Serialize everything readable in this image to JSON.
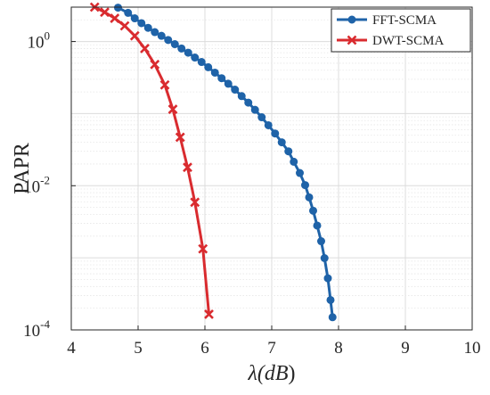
{
  "chart_data": {
    "type": "line",
    "title": "",
    "xlabel_parts": [
      "λ(",
      "dB",
      ")"
    ],
    "ylabel": "PAPR",
    "xlim": [
      4,
      10
    ],
    "ylim": [
      0.0001,
      3
    ],
    "yscale": "log",
    "grid": true,
    "legend_position": "top-right",
    "x_ticks": [
      4,
      5,
      6,
      7,
      8,
      9,
      10
    ],
    "x_tick_labels": [
      "4",
      "5",
      "6",
      "7",
      "8",
      "9",
      "10"
    ],
    "y_ticks": [
      {
        "value": 0.0001,
        "base": "10",
        "exp": "-4"
      },
      {
        "value": 0.01,
        "base": "10",
        "exp": "-2"
      },
      {
        "value": 1,
        "base": "10",
        "exp": "0"
      }
    ],
    "series": [
      {
        "name": "FFT-SCMA",
        "color": "#1f63a8",
        "marker": "circle",
        "points": [
          [
            4.7,
            2.95
          ],
          [
            4.85,
            2.5
          ],
          [
            4.95,
            2.1
          ],
          [
            5.05,
            1.8
          ],
          [
            5.15,
            1.55
          ],
          [
            5.25,
            1.35
          ],
          [
            5.35,
            1.2
          ],
          [
            5.45,
            1.05
          ],
          [
            5.55,
            0.92
          ],
          [
            5.65,
            0.8
          ],
          [
            5.75,
            0.7
          ],
          [
            5.85,
            0.6
          ],
          [
            5.95,
            0.52
          ],
          [
            6.05,
            0.44
          ],
          [
            6.15,
            0.37
          ],
          [
            6.25,
            0.31
          ],
          [
            6.35,
            0.26
          ],
          [
            6.45,
            0.215
          ],
          [
            6.55,
            0.175
          ],
          [
            6.65,
            0.142
          ],
          [
            6.75,
            0.113
          ],
          [
            6.85,
            0.089
          ],
          [
            6.95,
            0.069
          ],
          [
            7.05,
            0.053
          ],
          [
            7.15,
            0.04
          ],
          [
            7.25,
            0.03
          ],
          [
            7.33,
            0.0215
          ],
          [
            7.42,
            0.015
          ],
          [
            7.5,
            0.0102
          ],
          [
            7.56,
            0.0069
          ],
          [
            7.62,
            0.0045
          ],
          [
            7.68,
            0.0028
          ],
          [
            7.74,
            0.0017
          ],
          [
            7.79,
            0.00099
          ],
          [
            7.84,
            0.00052
          ],
          [
            7.88,
            0.00026
          ],
          [
            7.91,
            0.00015
          ]
        ]
      },
      {
        "name": "DWT-SCMA",
        "color": "#d92b2f",
        "marker": "x",
        "points": [
          [
            4.35,
            3.0
          ],
          [
            4.5,
            2.55
          ],
          [
            4.65,
            2.1
          ],
          [
            4.8,
            1.65
          ],
          [
            4.95,
            1.2
          ],
          [
            5.1,
            0.8
          ],
          [
            5.25,
            0.48
          ],
          [
            5.4,
            0.25
          ],
          [
            5.52,
            0.115
          ],
          [
            5.63,
            0.047
          ],
          [
            5.74,
            0.018
          ],
          [
            5.85,
            0.0059
          ],
          [
            5.97,
            0.00133
          ],
          [
            6.06,
            0.000165
          ]
        ]
      }
    ]
  }
}
